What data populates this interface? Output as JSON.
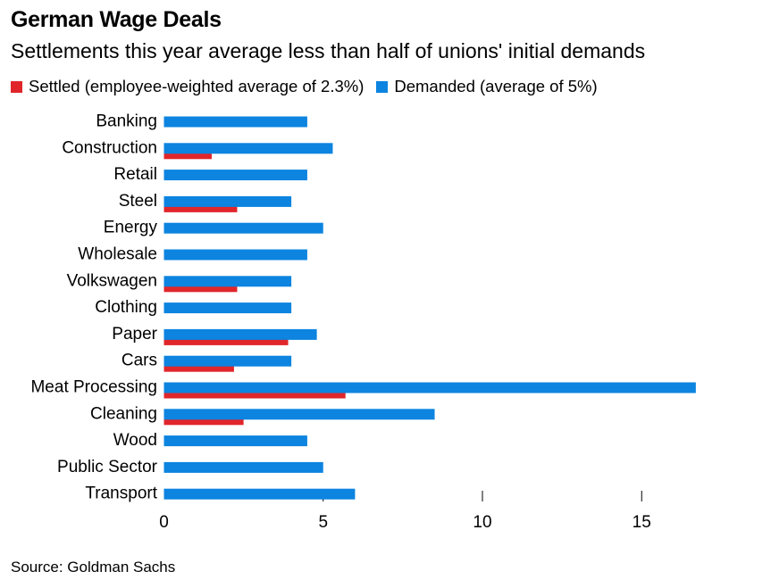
{
  "header": {
    "title": "German Wage Deals",
    "subtitle": "Settlements this year average less than half of unions' initial demands"
  },
  "footer": {
    "source": "Source: Goldman Sachs"
  },
  "chart_data": {
    "type": "bar",
    "orientation": "horizontal",
    "categories": [
      "Banking",
      "Construction",
      "Retail",
      "Steel",
      "Energy",
      "Wholesale",
      "Volkswagen",
      "Clothing",
      "Paper",
      "Cars",
      "Meat Processing",
      "Cleaning",
      "Wood",
      "Public Sector",
      "Transport"
    ],
    "series": [
      {
        "name": "Settled (employee-weighted average of 2.3%)",
        "color": "#e0262b",
        "values": [
          null,
          1.5,
          null,
          2.3,
          null,
          null,
          2.3,
          null,
          3.9,
          2.2,
          5.7,
          2.5,
          null,
          null,
          null
        ]
      },
      {
        "name": "Demanded (average of 5%)",
        "color": "#0c84e0",
        "values": [
          4.5,
          5.3,
          4.5,
          4.0,
          5.0,
          4.5,
          4.0,
          4.0,
          4.8,
          4.0,
          16.7,
          8.5,
          4.5,
          5.0,
          6.0
        ]
      }
    ],
    "xticks": [
      "0",
      "5",
      "10",
      "15"
    ],
    "xlim": [
      0,
      18
    ],
    "xlabel": "",
    "ylabel": "",
    "legend": "top-left",
    "grid": false
  }
}
